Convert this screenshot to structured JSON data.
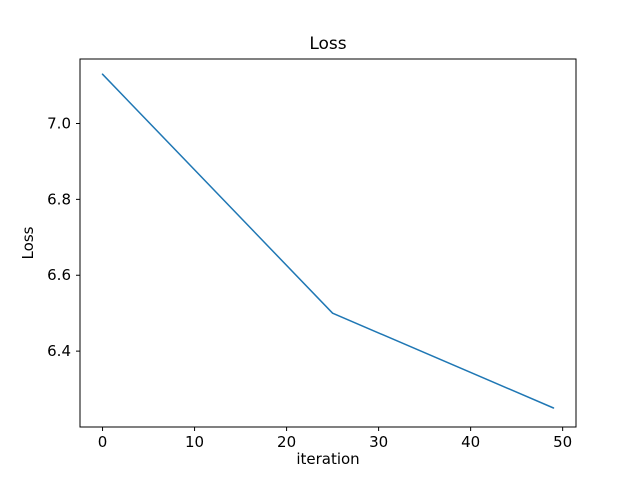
{
  "figure": {
    "background": "#ffffff",
    "frame_color": "#000000",
    "text_color": "#000000"
  },
  "chart_data": {
    "type": "line",
    "title": "Loss",
    "xlabel": "iteration",
    "ylabel": "Loss",
    "x": [
      0,
      25,
      49
    ],
    "y": [
      7.13,
      6.5,
      6.25
    ],
    "series": [
      {
        "name": "Loss",
        "x": [
          0,
          25,
          49
        ],
        "y": [
          7.13,
          6.5,
          6.25
        ]
      }
    ],
    "xlim": [
      -2.45,
      51.45
    ],
    "ylim": [
      6.2,
      7.17
    ],
    "xticks": [
      0,
      10,
      20,
      30,
      40,
      50
    ],
    "yticks": [
      6.4,
      6.6,
      6.8,
      7.0
    ],
    "ytick_decimals": 1,
    "line_color": "#1f77b4",
    "line_width": 1.5,
    "grid": false,
    "legend": "none"
  }
}
